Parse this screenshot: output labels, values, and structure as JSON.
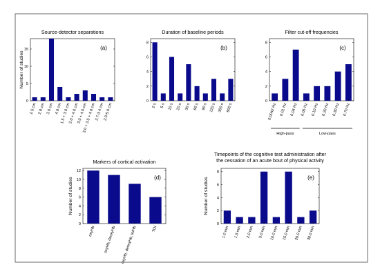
{
  "chart_data": [
    {
      "type": "bar",
      "panel_label": "(a)",
      "title": "Source-detector separations",
      "ylabel": "Number of studies",
      "xlabel": "",
      "ylim": [
        0,
        18
      ],
      "yticks": [
        0,
        5,
        10,
        15
      ],
      "categories": [
        "2.5 cm",
        "2.8 cm",
        "3.0 cm",
        "4.0 cm",
        "1.5 + 3.0 cm",
        "2.0 + 4.0 cm",
        "3.0 + 4.0 cm",
        "3.0 + 3.5 + 4.0 cm",
        "2.7-3.4 cm",
        "2.0-5.0 cm"
      ],
      "values": [
        1,
        1,
        18,
        4,
        1,
        2,
        3,
        2,
        1,
        1
      ],
      "bar_color": "#0a0a8c",
      "grid": false
    },
    {
      "type": "bar",
      "panel_label": "(b)",
      "title": "Duration of baseline periods",
      "ylabel": "",
      "xlabel": "",
      "ylim": [
        0,
        8.5
      ],
      "yticks": [
        0,
        2,
        4,
        6,
        8
      ],
      "categories": [
        "2 s",
        "5 s",
        "10 s",
        "20 s",
        "30 s",
        "60 s",
        "90 s",
        "120 s",
        "300 s",
        "600 s"
      ],
      "values": [
        8,
        1,
        6,
        1,
        5,
        2,
        1,
        3,
        1,
        3
      ],
      "bar_color": "#0a0a8c",
      "grid": false
    },
    {
      "type": "bar",
      "panel_label": "(c)",
      "title": "Filter cut-off frequencies",
      "ylabel": "",
      "xlabel": "",
      "ylim": [
        0,
        8.5
      ],
      "yticks": [
        0,
        2,
        4,
        6,
        8
      ],
      "categories": [
        "0.0042 Hz",
        "0.01 Hz",
        "0.04 Hz",
        "0.05 Hz",
        "0.10 Hz",
        "0.20 Hz",
        "0.30 Hz",
        "0.70 Hz"
      ],
      "values": [
        1,
        3,
        7,
        1,
        2,
        2,
        4,
        5
      ],
      "groups": [
        {
          "name": "High-pass",
          "from": 0,
          "to": 2
        },
        {
          "name": "Low-pass",
          "from": 3,
          "to": 7
        }
      ],
      "bar_color": "#0a0a8c",
      "grid": false
    },
    {
      "type": "bar",
      "panel_label": "(d)",
      "title": "Markers of cortical activation",
      "ylabel": "Number of studies",
      "xlabel": "",
      "ylim": [
        0,
        12.5
      ],
      "yticks": [
        0,
        2,
        4,
        6,
        8,
        10,
        12
      ],
      "categories": [
        "oxyHb",
        "oxyHb, deoxyHb",
        "oxyHb, deoxyHb, totHb",
        "TOI"
      ],
      "values": [
        12,
        11,
        9,
        6
      ],
      "bar_color": "#0a0a8c",
      "grid": false
    },
    {
      "type": "bar",
      "panel_label": "(e)",
      "title": "Timepoints of the cognitive test administration after",
      "subtitle": "the cessation of an acute bout of physical activity",
      "ylabel": "Number of studies",
      "xlabel": "",
      "ylim": [
        0,
        8.5
      ],
      "yticks": [
        0,
        2,
        4,
        6,
        8
      ],
      "categories": [
        "1.0 min",
        "1.5 min",
        "2.0 min",
        "5.0 min",
        "10.0 min",
        "15.0 min",
        "20.0 min",
        "30.0 min"
      ],
      "values": [
        2,
        1,
        1,
        8,
        1,
        8,
        1,
        2
      ],
      "bar_color": "#0a0a8c",
      "grid": false
    }
  ]
}
